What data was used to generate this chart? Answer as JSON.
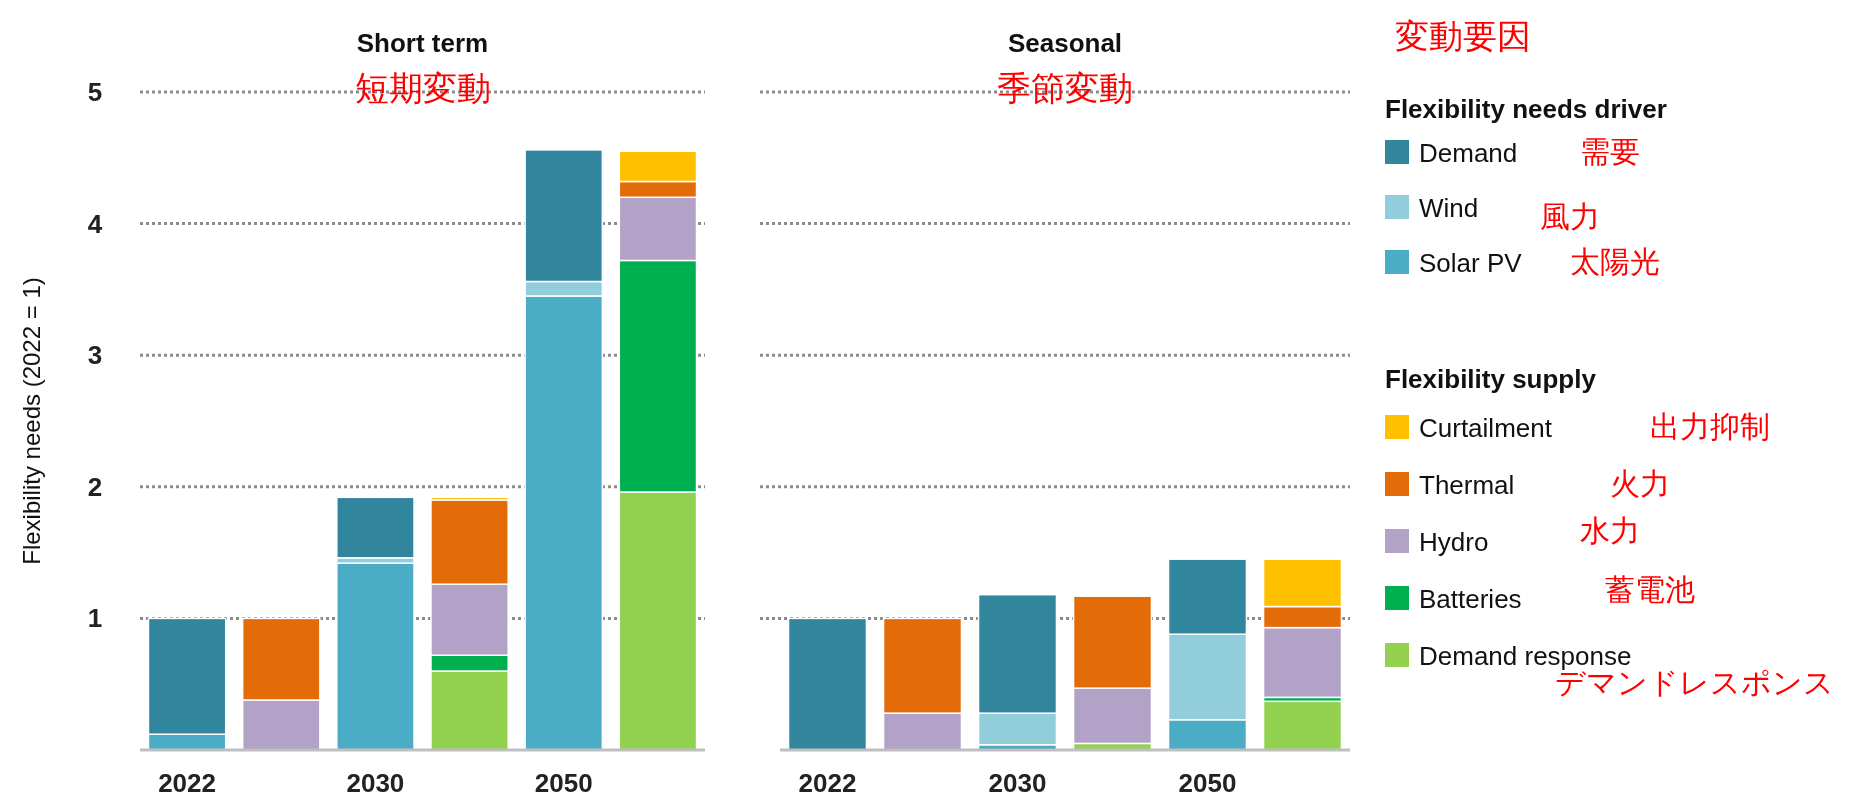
{
  "chart_data": [
    {
      "type": "bar",
      "stacked": true,
      "title": "Short term",
      "subtitle": "短期変動",
      "ylabel": "Flexibility needs (2022 = 1)",
      "categories": [
        "2022",
        null,
        "2030",
        null,
        "2050",
        null
      ],
      "ylim": [
        0,
        5
      ],
      "yticks": [
        {
          "value": 0,
          "label": null
        },
        1,
        2,
        3,
        4,
        5
      ],
      "grid": "y",
      "legend": "right",
      "annotations": [
        "変動要因",
        "Flexibility needs driver",
        "需要",
        "風力",
        "太陽光",
        "Flexibility supply",
        "出力抑制",
        "火力",
        "水力",
        "蓄電池",
        "デマンドレスポンス"
      ],
      "series": [
        {
          "name": "Solar PV",
          "color": "#4bacc6",
          "values": [
            0.12,
            null,
            1.42,
            null,
            3.45,
            null
          ]
        },
        {
          "name": "Wind",
          "color": "#92cddc",
          "values": [
            0,
            null,
            0.04,
            null,
            0.11,
            null
          ]
        },
        {
          "name": "Demand",
          "color": "#31859c",
          "values": [
            0.88,
            null,
            0.46,
            null,
            1.0,
            null
          ]
        },
        {
          "name": "Demand response",
          "color": "#92d050",
          "values": [
            null,
            0,
            null,
            0.6,
            null,
            1.96
          ]
        },
        {
          "name": "Batteries",
          "color": "#00b050",
          "values": [
            null,
            0,
            null,
            0.12,
            null,
            1.76
          ]
        },
        {
          "name": "Hydro",
          "color": "#b2a2c7",
          "values": [
            null,
            0.38,
            null,
            0.54,
            null,
            0.48
          ]
        },
        {
          "name": "Thermal",
          "color": "#e36c09",
          "values": [
            null,
            0.62,
            null,
            0.64,
            null,
            0.12
          ]
        },
        {
          "name": "Curtailment",
          "color": "#ffc000",
          "values": [
            null,
            0,
            null,
            0.02,
            null,
            0.23
          ]
        }
      ]
    },
    {
      "type": "bar",
      "stacked": true,
      "title": "Seasonal",
      "subtitle": "季節変動",
      "categories": [
        "2022",
        null,
        "2030",
        null,
        "2050",
        null
      ],
      "ylim": [
        0,
        5
      ],
      "yticks": [
        {
          "value": 0,
          "label": null
        },
        1,
        2,
        3,
        4,
        5
      ],
      "grid": "y",
      "tick_labels": "x",
      "series": [
        {
          "color": "#4bacc6",
          "values": [
            0,
            null,
            0.04,
            null,
            0.23,
            null
          ]
        },
        {
          "color": "#92cddc",
          "values": [
            0,
            null,
            0.24,
            null,
            0.65,
            null
          ]
        },
        {
          "color": "#31859c",
          "values": [
            1.0,
            null,
            0.9,
            null,
            0.57,
            null
          ]
        },
        {
          "color": "#92d050",
          "values": [
            null,
            0,
            null,
            0.05,
            null,
            0.37
          ]
        },
        {
          "color": "#00b050",
          "values": [
            null,
            0,
            null,
            0,
            null,
            0.03
          ]
        },
        {
          "color": "#b2a2c7",
          "values": [
            null,
            0.28,
            null,
            0.42,
            null,
            0.53
          ]
        },
        {
          "color": "#e36c09",
          "values": [
            null,
            0.72,
            null,
            0.7,
            null,
            0.16
          ]
        },
        {
          "color": "#ffc000",
          "values": [
            null,
            0,
            null,
            0.01,
            null,
            0.36
          ]
        }
      ]
    }
  ]
}
